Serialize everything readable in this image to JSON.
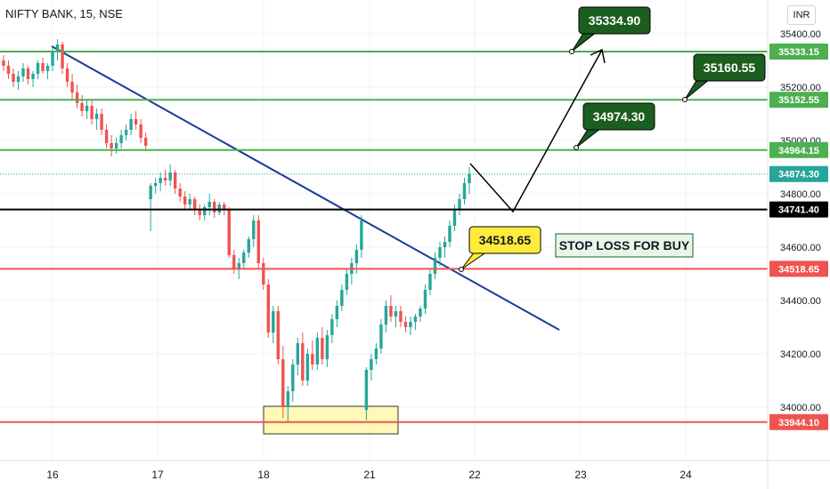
{
  "header": {
    "title": "NIFTY BANK, 15, NSE",
    "currency": "INR"
  },
  "chart_data": {
    "type": "candlestick",
    "symbol": "NIFTY BANK",
    "interval": "15",
    "exchange": "NSE",
    "ylim": [
      33800,
      35500
    ],
    "y_ticks": [
      "35400.00",
      "35200.00",
      "35000.00",
      "34800.00",
      "34600.00",
      "34400.00",
      "34200.00",
      "34000.00"
    ],
    "x_ticks": [
      "16",
      "17",
      "18",
      "21",
      "22",
      "23",
      "24"
    ],
    "levels": [
      {
        "value": 35333.15,
        "label": "35333.15",
        "color": "#4caf50"
      },
      {
        "value": 35152.55,
        "label": "35152.55",
        "color": "#4caf50"
      },
      {
        "value": 34964.15,
        "label": "34964.15",
        "color": "#4caf50"
      },
      {
        "value": 34874.3,
        "label": "34874.30",
        "color": "#26a69a",
        "style": "dotted"
      },
      {
        "value": 34741.4,
        "label": "34741.40",
        "color": "#000000"
      },
      {
        "value": 34518.65,
        "label": "34518.65",
        "color": "#ef5350"
      },
      {
        "value": 33944.1,
        "label": "33944.10",
        "color": "#ef5350"
      }
    ],
    "callouts": [
      {
        "text": "35334.90",
        "style": "green"
      },
      {
        "text": "35160.55",
        "style": "green"
      },
      {
        "text": "34974.30",
        "style": "green"
      },
      {
        "text": "34518.65",
        "style": "yellow"
      }
    ],
    "annotations": [
      {
        "text": "STOP LOSS FOR BUY"
      }
    ],
    "candles": [
      [
        35300,
        35320,
        35260,
        35280
      ],
      [
        35280,
        35300,
        35230,
        35250
      ],
      [
        35250,
        35270,
        35200,
        35220
      ],
      [
        35220,
        35260,
        35190,
        35240
      ],
      [
        35240,
        35290,
        35220,
        35270
      ],
      [
        35270,
        35280,
        35210,
        35230
      ],
      [
        35230,
        35260,
        35200,
        35250
      ],
      [
        35250,
        35300,
        35230,
        35290
      ],
      [
        35290,
        35310,
        35250,
        35260
      ],
      [
        35260,
        35290,
        35230,
        35280
      ],
      [
        35280,
        35350,
        35260,
        35330
      ],
      [
        35330,
        35380,
        35300,
        35360
      ],
      [
        35360,
        35370,
        35250,
        35270
      ],
      [
        35270,
        35290,
        35200,
        35220
      ],
      [
        35220,
        35250,
        35150,
        35180
      ],
      [
        35180,
        35210,
        35120,
        35140
      ],
      [
        35140,
        35170,
        35090,
        35110
      ],
      [
        35110,
        35150,
        35080,
        35130
      ],
      [
        35130,
        35150,
        35060,
        35080
      ],
      [
        35080,
        35120,
        35040,
        35100
      ],
      [
        35100,
        35120,
        35020,
        35040
      ],
      [
        35040,
        35060,
        34970,
        34990
      ],
      [
        34990,
        35020,
        34940,
        34970
      ],
      [
        34970,
        35010,
        34950,
        34990
      ],
      [
        34990,
        35040,
        34970,
        35020
      ],
      [
        35020,
        35060,
        35000,
        35040
      ],
      [
        35040,
        35100,
        35020,
        35080
      ],
      [
        35080,
        35110,
        35040,
        35060
      ],
      [
        35060,
        35080,
        34990,
        35010
      ],
      [
        35010,
        35030,
        34960,
        34980
      ],
      [
        34780,
        34840,
        34660,
        34830
      ],
      [
        34830,
        34860,
        34800,
        34840
      ],
      [
        34840,
        34880,
        34810,
        34860
      ],
      [
        34860,
        34890,
        34830,
        34850
      ],
      [
        34850,
        34910,
        34830,
        34880
      ],
      [
        34880,
        34890,
        34800,
        34820
      ],
      [
        34820,
        34840,
        34770,
        34790
      ],
      [
        34790,
        34810,
        34740,
        34760
      ],
      [
        34760,
        34800,
        34740,
        34780
      ],
      [
        34780,
        34790,
        34720,
        34740
      ],
      [
        34740,
        34760,
        34700,
        34720
      ],
      [
        34720,
        34760,
        34700,
        34750
      ],
      [
        34750,
        34800,
        34720,
        34770
      ],
      [
        34770,
        34780,
        34710,
        34730
      ],
      [
        34730,
        34770,
        34720,
        34760
      ],
      [
        34760,
        34770,
        34720,
        34740
      ],
      [
        34740,
        34750,
        34560,
        34570
      ],
      [
        34570,
        34590,
        34500,
        34520
      ],
      [
        34520,
        34560,
        34480,
        34540
      ],
      [
        34540,
        34590,
        34520,
        34580
      ],
      [
        34580,
        34640,
        34560,
        34630
      ],
      [
        34630,
        34720,
        34600,
        34700
      ],
      [
        34700,
        34720,
        34520,
        34540
      ],
      [
        34540,
        34560,
        34440,
        34460
      ],
      [
        34460,
        34480,
        34260,
        34280
      ],
      [
        34280,
        34380,
        34240,
        34360
      ],
      [
        34360,
        34380,
        34160,
        34180
      ],
      [
        34180,
        34230,
        33960,
        34000
      ],
      [
        34000,
        34080,
        33940,
        34060
      ],
      [
        34060,
        34180,
        34020,
        34160
      ],
      [
        34160,
        34260,
        34120,
        34240
      ],
      [
        34240,
        34280,
        34080,
        34100
      ],
      [
        34100,
        34220,
        34080,
        34200
      ],
      [
        34200,
        34250,
        34140,
        34160
      ],
      [
        34160,
        34280,
        34140,
        34260
      ],
      [
        34260,
        34300,
        34160,
        34180
      ],
      [
        34180,
        34290,
        34150,
        34270
      ],
      [
        34270,
        34350,
        34240,
        34330
      ],
      [
        34330,
        34400,
        34300,
        34380
      ],
      [
        34380,
        34460,
        34360,
        34440
      ],
      [
        34440,
        34520,
        34420,
        34500
      ],
      [
        34500,
        34560,
        34460,
        34540
      ],
      [
        34540,
        34610,
        34500,
        34590
      ],
      [
        34590,
        34720,
        34560,
        34700
      ],
      [
        33990,
        34150,
        33950,
        34140
      ],
      [
        34140,
        34200,
        34100,
        34180
      ],
      [
        34180,
        34240,
        34160,
        34220
      ],
      [
        34220,
        34330,
        34200,
        34310
      ],
      [
        34310,
        34400,
        34280,
        34380
      ],
      [
        34380,
        34420,
        34320,
        34340
      ],
      [
        34340,
        34380,
        34300,
        34360
      ],
      [
        34360,
        34380,
        34300,
        34320
      ],
      [
        34320,
        34340,
        34280,
        34300
      ],
      [
        34300,
        34340,
        34270,
        34320
      ],
      [
        34320,
        34350,
        34290,
        34340
      ],
      [
        34340,
        34380,
        34320,
        34370
      ],
      [
        34370,
        34460,
        34350,
        34440
      ],
      [
        34440,
        34520,
        34420,
        34500
      ],
      [
        34500,
        34580,
        34480,
        34560
      ],
      [
        34560,
        34620,
        34530,
        34600
      ],
      [
        34600,
        34640,
        34560,
        34620
      ],
      [
        34620,
        34700,
        34600,
        34680
      ],
      [
        34680,
        34760,
        34660,
        34740
      ],
      [
        34740,
        34800,
        34720,
        34780
      ],
      [
        34780,
        34860,
        34760,
        34840
      ],
      [
        34840,
        34900,
        34800,
        34874
      ]
    ]
  }
}
